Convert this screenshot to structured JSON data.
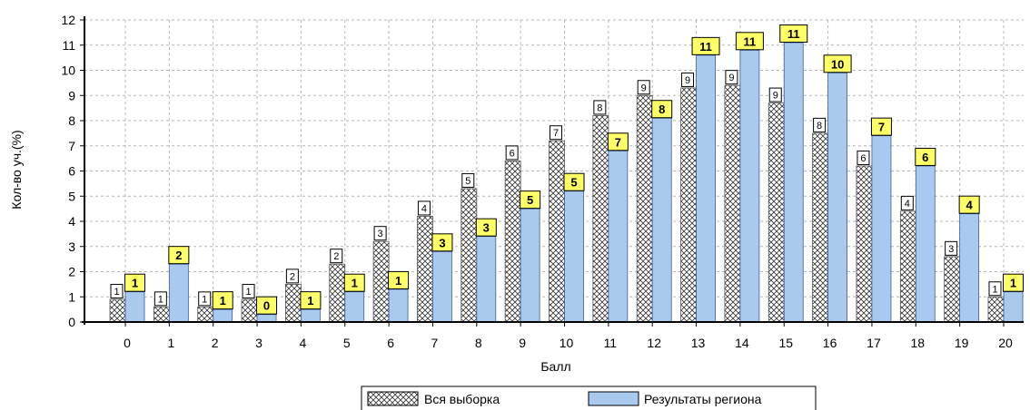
{
  "chart_data": {
    "type": "bar",
    "xlabel": "Балл",
    "ylabel": "Кол-во уч.(%)",
    "ylim": [
      0,
      12
    ],
    "yticks": [
      0,
      1,
      2,
      3,
      4,
      5,
      6,
      7,
      8,
      9,
      10,
      11,
      12
    ],
    "grid": true,
    "legend_position": "bottom",
    "categories": [
      "0",
      "1",
      "2",
      "3",
      "4",
      "5",
      "6",
      "7",
      "8",
      "9",
      "10",
      "11",
      "12",
      "13",
      "14",
      "15",
      "16",
      "17",
      "18",
      "19",
      "20"
    ],
    "series": [
      {
        "name": "Вся выборка",
        "values": [
          0.9,
          0.6,
          0.6,
          0.9,
          1.5,
          2.3,
          3.2,
          4.2,
          5.3,
          6.4,
          7.2,
          8.2,
          9.0,
          9.3,
          9.4,
          8.7,
          7.5,
          6.2,
          4.4,
          2.6,
          1.0
        ],
        "labels": [
          "1",
          "1",
          "1",
          "1",
          "2",
          "2",
          "3",
          "4",
          "5",
          "6",
          "7",
          "8",
          "9",
          "9",
          "9",
          "9",
          "8",
          "6",
          "4",
          "3",
          "1"
        ],
        "fill": "hatch"
      },
      {
        "name": "Результаты региона",
        "values": [
          1.2,
          2.3,
          0.5,
          0.3,
          0.5,
          1.2,
          1.3,
          2.8,
          3.4,
          4.5,
          5.2,
          6.8,
          8.1,
          10.6,
          10.8,
          11.1,
          9.9,
          7.4,
          6.2,
          4.3,
          1.2
        ],
        "labels": [
          "1",
          "2",
          "1",
          "0",
          "1",
          "1",
          "1",
          "3",
          "3",
          "5",
          "5",
          "7",
          "8",
          "11",
          "11",
          "11",
          "10",
          "7",
          "6",
          "4",
          "1"
        ],
        "color": "#a9c9ef",
        "label_bg": "#ffff66"
      }
    ]
  }
}
